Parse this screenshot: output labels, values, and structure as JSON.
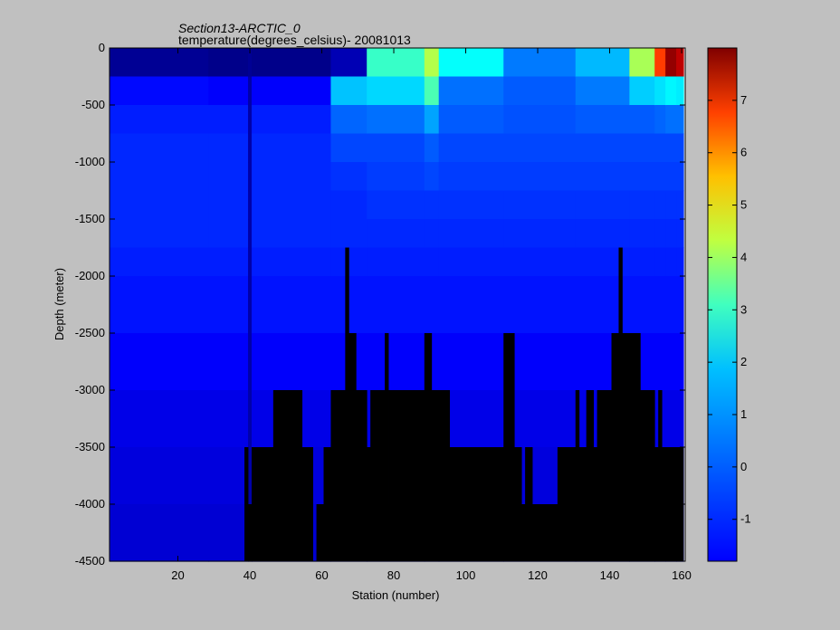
{
  "chart_data": {
    "type": "heatmap",
    "title": "Section13-ARCTIC_0",
    "subtitle": "temperature(degrees_celsius)- 20081013",
    "xlabel": "Station (number)",
    "ylabel": "Depth (meter)",
    "xlim": [
      1,
      161
    ],
    "ylim": [
      -4500,
      0
    ],
    "x_ticks": [
      20,
      40,
      60,
      80,
      100,
      120,
      140,
      160
    ],
    "y_ticks": [
      0,
      -500,
      -1000,
      -1500,
      -2000,
      -2500,
      -3000,
      -3500,
      -4000,
      -4500
    ],
    "colorbar": {
      "range": [
        -1.8,
        8
      ],
      "ticks": [
        -1,
        0,
        1,
        2,
        3,
        4,
        5,
        6,
        7
      ],
      "colormap": "jet"
    },
    "depth_levels": [
      0,
      -250,
      -500,
      -750,
      -1000,
      -1250,
      -1500,
      -1750,
      -2000,
      -2500,
      -3000,
      -3500,
      -4000,
      -4500
    ],
    "temperature_profiles": [
      {
        "stations": [
          1,
          28
        ],
        "values": [
          -1.6,
          -0.5,
          -0.3,
          -0.2,
          -0.2,
          -0.2,
          -0.2,
          -0.3,
          -0.4,
          -0.6,
          -0.8,
          -0.9,
          -1.0
        ]
      },
      {
        "stations": [
          29,
          39
        ],
        "values": [
          -1.7,
          -0.6,
          -0.3,
          -0.2,
          -0.2,
          -0.2,
          -0.2,
          -0.3,
          -0.4,
          -0.6,
          -0.8,
          -0.9,
          -1.0
        ]
      },
      {
        "stations": [
          40,
          40
        ],
        "values": [
          -1.6,
          -1.4,
          -1.4,
          -1.4,
          -1.4,
          -1.4,
          -1.4,
          -1.4,
          -1.4,
          -1.4,
          -1.4,
          -1.4,
          -1.4
        ]
      },
      {
        "stations": [
          41,
          62
        ],
        "values": [
          -1.7,
          -0.6,
          -0.3,
          -0.2,
          -0.2,
          -0.2,
          -0.2,
          -0.3,
          -0.4,
          -0.6,
          -0.8,
          -0.9,
          -1.0
        ]
      },
      {
        "stations": [
          63,
          72
        ],
        "values": [
          -1.3,
          1.3,
          0.4,
          0.1,
          -0.1,
          -0.2,
          -0.2,
          -0.3,
          -0.4,
          -0.6,
          -0.8,
          -0.9,
          -1.0
        ]
      },
      {
        "stations": [
          73,
          88
        ],
        "values": [
          2.4,
          1.5,
          0.5,
          0.1,
          0.0,
          -0.1,
          -0.2,
          -0.3,
          -0.4,
          -0.6,
          -0.8,
          -0.9,
          -1.0
        ]
      },
      {
        "stations": [
          89,
          92
        ],
        "values": [
          3.6,
          2.6,
          1.0,
          0.3,
          0.1,
          -0.1,
          -0.2,
          -0.3,
          -0.4,
          -0.6,
          -0.8,
          -0.9,
          -1.0
        ]
      },
      {
        "stations": [
          93,
          110
        ],
        "values": [
          1.9,
          0.5,
          0.3,
          0.1,
          0.0,
          -0.1,
          -0.2,
          -0.3,
          -0.4,
          -0.6,
          -0.8,
          -0.9,
          -1.0
        ]
      },
      {
        "stations": [
          111,
          130
        ],
        "values": [
          0.6,
          0.3,
          0.2,
          0.1,
          0.0,
          -0.1,
          -0.2,
          -0.3,
          -0.4,
          -0.6,
          -0.8,
          -0.9,
          -1.0
        ]
      },
      {
        "stations": [
          131,
          145
        ],
        "values": [
          1.2,
          0.6,
          0.3,
          0.1,
          0.0,
          -0.1,
          -0.2,
          -0.3,
          -0.4,
          -0.6,
          -0.8,
          -0.9,
          -1.0
        ]
      },
      {
        "stations": [
          146,
          152
        ],
        "values": [
          3.5,
          1.4,
          0.3,
          0.1,
          0.0,
          -0.1,
          -0.2,
          -0.3,
          -0.4,
          -0.6,
          -0.8,
          -0.9,
          -1.0
        ]
      },
      {
        "stations": [
          153,
          155
        ],
        "values": [
          6.2,
          1.6,
          0.4,
          0.1,
          0.0,
          -0.1,
          -0.2,
          -0.3,
          -0.4,
          -0.6,
          -0.8,
          -0.9,
          -1.0
        ]
      },
      {
        "stations": [
          156,
          158
        ],
        "values": [
          7.8,
          1.8,
          0.5,
          0.1,
          0.0,
          -0.1,
          -0.2,
          -0.3,
          -0.4,
          -0.6,
          -0.8,
          -0.9,
          -1.0
        ]
      },
      {
        "stations": [
          159,
          160
        ],
        "values": [
          7.4,
          1.7,
          0.5,
          0.1,
          0.0,
          -0.1,
          -0.2,
          -0.3,
          -0.4,
          -0.6,
          -0.8,
          -0.9,
          -1.0
        ]
      }
    ],
    "bottom_depth": [
      {
        "stations": [
          1,
          38
        ],
        "depth": -4500
      },
      {
        "stations": [
          39,
          39
        ],
        "depth": -3500
      },
      {
        "stations": [
          40,
          40
        ],
        "depth": -4000
      },
      {
        "stations": [
          41,
          41
        ],
        "depth": -3500
      },
      {
        "stations": [
          42,
          46
        ],
        "depth": -3500
      },
      {
        "stations": [
          47,
          54
        ],
        "depth": -3000
      },
      {
        "stations": [
          55,
          57
        ],
        "depth": -3500
      },
      {
        "stations": [
          58,
          58
        ],
        "depth": -4500
      },
      {
        "stations": [
          59,
          60
        ],
        "depth": -4000
      },
      {
        "stations": [
          61,
          62
        ],
        "depth": -3500
      },
      {
        "stations": [
          63,
          66
        ],
        "depth": -3000
      },
      {
        "stations": [
          67,
          67
        ],
        "depth": -1750
      },
      {
        "stations": [
          68,
          69
        ],
        "depth": -2500
      },
      {
        "stations": [
          70,
          72
        ],
        "depth": -3000
      },
      {
        "stations": [
          73,
          73
        ],
        "depth": -3500
      },
      {
        "stations": [
          74,
          77
        ],
        "depth": -3000
      },
      {
        "stations": [
          78,
          78
        ],
        "depth": -2500
      },
      {
        "stations": [
          79,
          88
        ],
        "depth": -3000
      },
      {
        "stations": [
          89,
          90
        ],
        "depth": -2500
      },
      {
        "stations": [
          91,
          95
        ],
        "depth": -3000
      },
      {
        "stations": [
          96,
          110
        ],
        "depth": -3500
      },
      {
        "stations": [
          111,
          113
        ],
        "depth": -2500
      },
      {
        "stations": [
          114,
          115
        ],
        "depth": -3500
      },
      {
        "stations": [
          116,
          116
        ],
        "depth": -4000
      },
      {
        "stations": [
          117,
          118
        ],
        "depth": -3500
      },
      {
        "stations": [
          119,
          125
        ],
        "depth": -4000
      },
      {
        "stations": [
          126,
          130
        ],
        "depth": -3500
      },
      {
        "stations": [
          131,
          131
        ],
        "depth": -3000
      },
      {
        "stations": [
          132,
          133
        ],
        "depth": -3500
      },
      {
        "stations": [
          134,
          135
        ],
        "depth": -3000
      },
      {
        "stations": [
          136,
          136
        ],
        "depth": -3500
      },
      {
        "stations": [
          137,
          140
        ],
        "depth": -3000
      },
      {
        "stations": [
          141,
          142
        ],
        "depth": -2500
      },
      {
        "stations": [
          143,
          143
        ],
        "depth": -1750
      },
      {
        "stations": [
          144,
          148
        ],
        "depth": -2500
      },
      {
        "stations": [
          149,
          152
        ],
        "depth": -3000
      },
      {
        "stations": [
          153,
          153
        ],
        "depth": -3500
      },
      {
        "stations": [
          154,
          154
        ],
        "depth": -3000
      },
      {
        "stations": [
          155,
          160
        ],
        "depth": -3500
      }
    ]
  }
}
